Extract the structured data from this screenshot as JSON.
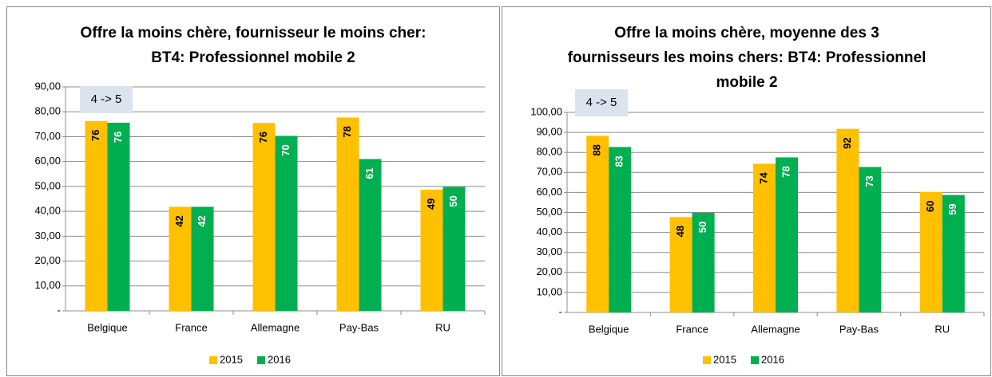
{
  "chart_data": [
    {
      "type": "bar",
      "title": [
        "Offre la moins chère, fournisseur le moins cher:",
        "BT4: Professionnel mobile 2"
      ],
      "annotation": "4 -> 5",
      "categories": [
        "Belgique",
        "France",
        "Allemagne",
        "Pay-Bas",
        "RU"
      ],
      "series": [
        {
          "name": "2015",
          "color": "#ffc000",
          "values": [
            76.3,
            41.8,
            75.5,
            77.7,
            48.7
          ],
          "value_labels": [
            "76",
            "42",
            "76",
            "78",
            "49"
          ]
        },
        {
          "name": "2016",
          "color": "#00b050",
          "values": [
            75.6,
            41.8,
            70.3,
            61.0,
            49.8
          ],
          "value_labels": [
            "76",
            "42",
            "70",
            "61",
            "50"
          ]
        }
      ],
      "ylim": [
        0,
        90
      ],
      "yticks": [
        {
          "value": 0,
          "label": "-"
        },
        {
          "value": 10,
          "label": "10,00"
        },
        {
          "value": 20,
          "label": "20,00"
        },
        {
          "value": 30,
          "label": "30,00"
        },
        {
          "value": 40,
          "label": "40,00"
        },
        {
          "value": 50,
          "label": "50,00"
        },
        {
          "value": 60,
          "label": "60,00"
        },
        {
          "value": 70,
          "label": "70,00"
        },
        {
          "value": 80,
          "label": "80,00"
        },
        {
          "value": 90,
          "label": "90,00"
        }
      ],
      "grid": true,
      "legend": "bottom"
    },
    {
      "type": "bar",
      "title": [
        "Offre la moins chère, moyenne des 3",
        "fournisseurs les moins chers: BT4: Professionnel",
        "mobile 2"
      ],
      "annotation": "4 -> 5",
      "categories": [
        "Belgique",
        "France",
        "Allemagne",
        "Pay-Bas",
        "RU"
      ],
      "series": [
        {
          "name": "2015",
          "color": "#ffc000",
          "values": [
            88.3,
            47.7,
            74.3,
            91.8,
            60.2
          ],
          "value_labels": [
            "88",
            "48",
            "74",
            "92",
            "60"
          ]
        },
        {
          "name": "2016",
          "color": "#00b050",
          "values": [
            82.7,
            49.8,
            77.5,
            72.7,
            58.7
          ],
          "value_labels": [
            "83",
            "50",
            "78",
            "73",
            "59"
          ]
        }
      ],
      "ylim": [
        0,
        100
      ],
      "yticks": [
        {
          "value": 0,
          "label": "-"
        },
        {
          "value": 10,
          "label": "10,00"
        },
        {
          "value": 20,
          "label": "20,00"
        },
        {
          "value": 30,
          "label": "30,00"
        },
        {
          "value": 40,
          "label": "40,00"
        },
        {
          "value": 50,
          "label": "50,00"
        },
        {
          "value": 60,
          "label": "60,00"
        },
        {
          "value": 70,
          "label": "70,00"
        },
        {
          "value": 80,
          "label": "80,00"
        },
        {
          "value": 90,
          "label": "90,00"
        },
        {
          "value": 100,
          "label": "100,00"
        }
      ],
      "grid": true,
      "legend": "bottom"
    }
  ]
}
